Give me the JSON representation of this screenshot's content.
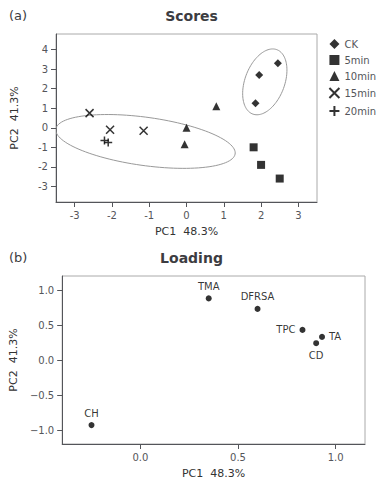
{
  "chart_data": [
    {
      "type": "scatter",
      "title": "Scores",
      "panel_label": "(a)",
      "x_label": "PC1  48.3%",
      "y_label": "PC2  41.3%",
      "color": "black",
      "legend": "upper right",
      "grid": false,
      "series": [
        {
          "name": "CK",
          "marker": "diamond",
          "x": [
            1.85,
            1.95,
            2.45
          ],
          "values": [
            1.25,
            2.7,
            3.3
          ]
        },
        {
          "name": "5min",
          "marker": "square",
          "x": [
            1.8,
            2.0,
            2.5
          ],
          "values": [
            -1.0,
            -1.9,
            -2.6
          ]
        },
        {
          "name": "10min",
          "marker": "triangle",
          "x": [
            0.0,
            0.8,
            -0.05
          ],
          "values": [
            0.0,
            1.1,
            -0.85
          ]
        },
        {
          "name": "15min",
          "marker": "x",
          "x": [
            -2.6,
            -2.05,
            -1.15
          ],
          "values": [
            0.75,
            -0.1,
            -0.15
          ]
        },
        {
          "name": "20min",
          "marker": "plus",
          "x": [
            -2.2,
            -2.1
          ],
          "values": [
            -0.65,
            -0.75
          ]
        }
      ],
      "ellipses": {
        "color": "#999999",
        "items": [
          {
            "cx": 2.1,
            "cy": 2.35,
            "width": 1.1,
            "height": 3.4,
            "angle": -8
          },
          {
            "cx": -1.1,
            "cy": -0.7,
            "width": 5.0,
            "height": 2.4,
            "angle": -18
          }
        ]
      },
      "xlim": [
        -3.5,
        3.5
      ],
      "ylim": [
        -3.8,
        4.8
      ],
      "xticks": [
        -3,
        -2,
        -1,
        0,
        1,
        2,
        3
      ],
      "yticks": [
        -3,
        -2,
        -1,
        0,
        1,
        2,
        3,
        4
      ]
    },
    {
      "type": "scatter",
      "title": "Loading",
      "panel_label": "(b)",
      "x_label": "PC1  48.3%",
      "y_label": "PC2  41.3%",
      "color": "black",
      "grid": false,
      "series": [
        {
          "marker": "circle",
          "x": [
            0.35,
            0.6,
            0.83,
            0.93,
            0.9,
            -0.25
          ],
          "values": [
            0.88,
            0.73,
            0.43,
            0.33,
            0.24,
            -0.93
          ],
          "labels": [
            "TMA",
            "DFRSA",
            "TPC",
            "TA",
            "CD",
            "CH"
          ]
        }
      ],
      "xlim": [
        -0.4,
        1.15
      ],
      "ylim": [
        -1.2,
        1.2
      ],
      "xticks": [
        {
          "value": 0.0,
          "label": "0.0"
        },
        {
          "value": 0.5,
          "label": "0.5"
        },
        {
          "value": 1.0,
          "label": "1.0"
        }
      ],
      "yticks": [
        {
          "value": -1.0,
          "label": "−1.0"
        },
        {
          "value": -0.5,
          "label": "−0.5"
        },
        {
          "value": 0.0,
          "label": "0.0"
        },
        {
          "value": 0.5,
          "label": "0.5"
        },
        {
          "value": 1.0,
          "label": "1.0"
        }
      ]
    }
  ]
}
